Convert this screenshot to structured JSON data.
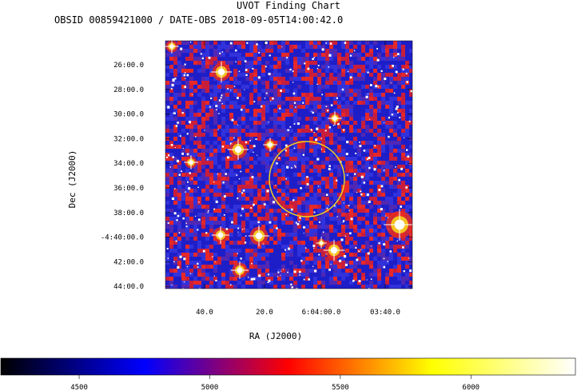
{
  "header": {
    "title": "UVOT Finding Chart",
    "subtitle": "OBSID 00859421000 / DATE-OBS 2018-09-05T14:00:42.0"
  },
  "chart_data": {
    "type": "heatmap",
    "title": "UVOT Finding Chart",
    "subtitle": "OBSID 00859421000 / DATE-OBS 2018-09-05T14:00:42.0",
    "xlabel": "RA (J2000)",
    "ylabel": "Dec (J2000)",
    "x_ticks": [
      "40.0",
      "20.0",
      "6:04:00.0",
      "03:40.0"
    ],
    "y_ticks": [
      "26:00.0",
      "28:00.0",
      "30:00.0",
      "32:00.0",
      "34:00.0",
      "36:00.0",
      "38:00.0",
      "-4:40:00.0",
      "42:00.0",
      "44:00.0"
    ],
    "colorbar": {
      "ticks": [
        "4500",
        "5000",
        "5500",
        "6000"
      ],
      "tick_values": [
        4500,
        5000,
        5500,
        6000
      ],
      "range": [
        4200,
        6400
      ],
      "colormap": [
        "#000000",
        "#0000ff",
        "#ff0000",
        "#ffff00",
        "#ffffff"
      ]
    },
    "image": {
      "background_colors": [
        "#1e1ec8",
        "#5028b4",
        "#c81e3c",
        "#e62828",
        "#3232dc"
      ],
      "star_color": "#ffffff"
    },
    "region": {
      "shape": "circle",
      "color": "#f2d21e"
    }
  }
}
